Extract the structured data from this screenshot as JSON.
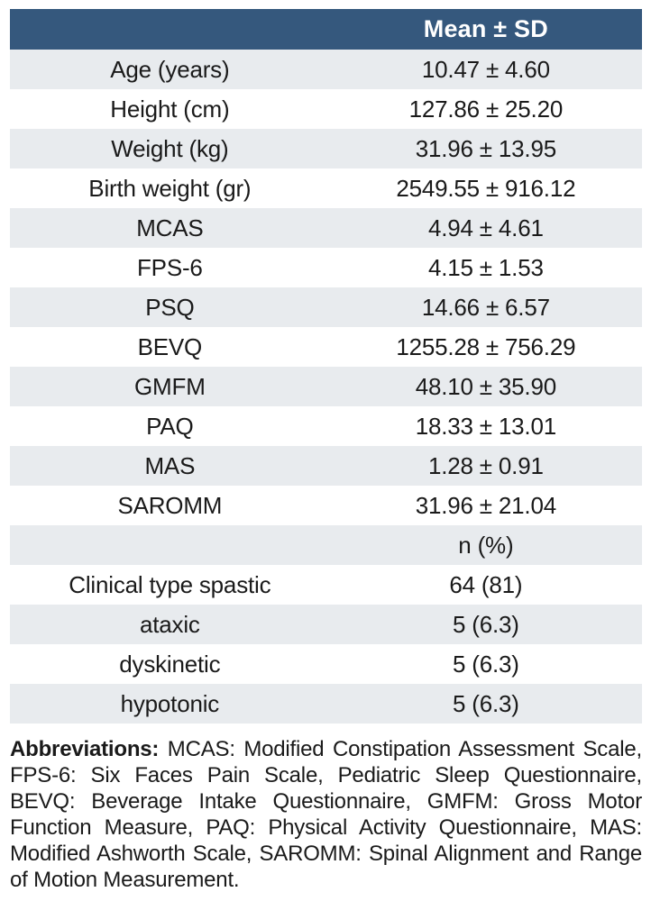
{
  "colors": {
    "header_bg": "#35587d",
    "header_text": "#ffffff",
    "stripe_bg": "#e8ebee",
    "text": "#1a1a1a",
    "page_bg": "#ffffff"
  },
  "table": {
    "header": {
      "label": "",
      "value": "Mean ± SD"
    },
    "rows": [
      {
        "label": "Age (years)",
        "value": "10.47 ± 4.60"
      },
      {
        "label": "Height (cm)",
        "value": "127.86 ± 25.20"
      },
      {
        "label": "Weight (kg)",
        "value": "31.96 ± 13.95"
      },
      {
        "label": "Birth weight (gr)",
        "value": "2549.55 ± 916.12"
      },
      {
        "label": "MCAS",
        "value": "4.94 ± 4.61"
      },
      {
        "label": "FPS-6",
        "value": "4.15 ± 1.53"
      },
      {
        "label": "PSQ",
        "value": "14.66 ± 6.57"
      },
      {
        "label": "BEVQ",
        "value": "1255.28 ± 756.29"
      },
      {
        "label": "GMFM",
        "value": "48.10 ± 35.90"
      },
      {
        "label": "PAQ",
        "value": "18.33 ± 13.01"
      },
      {
        "label": "MAS",
        "value": "1.28 ± 0.91"
      },
      {
        "label": "SAROMM",
        "value": "31.96 ± 21.04"
      },
      {
        "label": "",
        "value": "n (%)"
      },
      {
        "label": "Clinical type spastic",
        "value": "64 (81)"
      },
      {
        "label": "ataxic",
        "value": "5 (6.3)"
      },
      {
        "label": "dyskinetic",
        "value": "5 (6.3)"
      },
      {
        "label": "hypotonic",
        "value": "5 (6.3)"
      }
    ]
  },
  "footnote": {
    "label": "Abbreviations:",
    "text": "MCAS: Modified Constipation Assessment Scale, FPS-6: Six Faces Pain Scale, Pediatric Sleep Questionnaire, BEVQ: Beverage Intake Questionnaire, GMFM: Gross Motor Function Measure, PAQ: Physical Activity Questionnaire, MAS: Modified Ashworth Scale, SAROMM: Spinal Alignment and Range of Motion Measurement."
  }
}
